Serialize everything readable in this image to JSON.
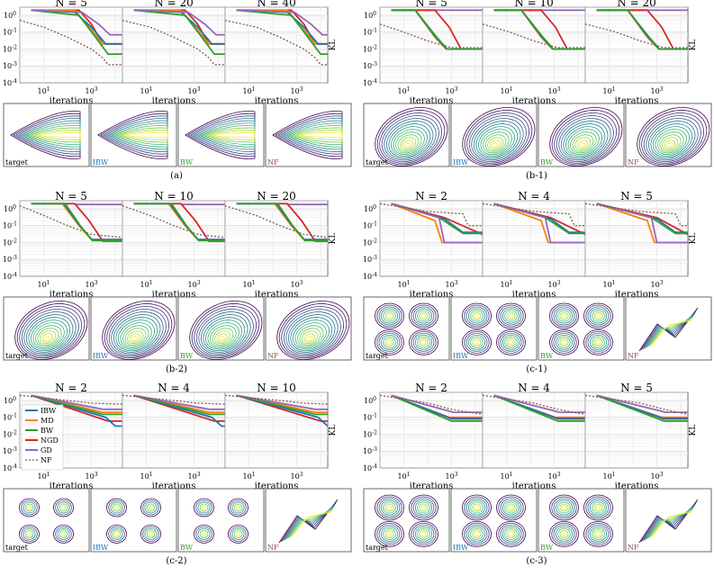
{
  "figure": {
    "xlabel": "iterations",
    "ylabel": "KL",
    "xticks": [
      "10^1",
      "10^3"
    ],
    "yticks": [
      "10^0",
      "10^-1",
      "10^-2",
      "10^-3",
      "10^-4"
    ],
    "ylim": [
      0.0001,
      3
    ],
    "contour_labels": [
      "target",
      "IBW",
      "BW",
      "NF"
    ]
  },
  "legend": [
    {
      "name": "IBW",
      "color": "#1f77b4",
      "style": "solid"
    },
    {
      "name": "MD",
      "color": "#ff7f0e",
      "style": "solid"
    },
    {
      "name": "BW",
      "color": "#2ca02c",
      "style": "solid"
    },
    {
      "name": "NGD",
      "color": "#d62728",
      "style": "solid"
    },
    {
      "name": "GD",
      "color": "#9467bd",
      "style": "solid"
    },
    {
      "name": "NF",
      "color": "#8c564b",
      "style": "dotted"
    }
  ],
  "chart_data": [
    {
      "caption": "(a)",
      "type": "line",
      "titles": [
        "N = 5",
        "N = 20",
        "N = 40"
      ],
      "contour": "banana",
      "series": [
        {
          "name": "NGD",
          "points": [
            [
              3,
              2
            ],
            [
              300,
              2
            ],
            [
              1000,
              0.3
            ],
            [
              3000,
              0.02
            ],
            [
              20000,
              0.02
            ]
          ]
        },
        {
          "name": "MD",
          "points": [
            [
              3,
              2
            ],
            [
              200,
              2
            ],
            [
              800,
              0.2
            ],
            [
              3000,
              0.02
            ],
            [
              20000,
              0.02
            ]
          ]
        },
        {
          "name": "IBW",
          "points": [
            [
              3,
              2
            ],
            [
              200,
              1.5
            ],
            [
              1000,
              0.2
            ],
            [
              4000,
              0.02
            ],
            [
              20000,
              0.02
            ]
          ]
        },
        {
          "name": "BW",
          "points": [
            [
              3,
              2
            ],
            [
              300,
              1
            ],
            [
              1500,
              0.05
            ],
            [
              5000,
              0.005
            ],
            [
              20000,
              0.005
            ]
          ]
        },
        {
          "name": "GD",
          "points": [
            [
              3,
              2
            ],
            [
              400,
              1.5
            ],
            [
              2000,
              0.3
            ],
            [
              6000,
              0.07
            ],
            [
              20000,
              0.07
            ]
          ]
        },
        {
          "name": "NF",
          "points": [
            [
              1,
              0.5
            ],
            [
              10,
              0.2
            ],
            [
              100,
              0.05
            ],
            [
              1000,
              0.01
            ],
            [
              3000,
              0.003
            ],
            [
              5000,
              0.0012
            ],
            [
              20000,
              0.0012
            ]
          ]
        }
      ]
    },
    {
      "caption": "(b-1)",
      "type": "line",
      "titles": [
        "N = 5",
        "N = 10",
        "N = 20"
      ],
      "contour": "blob",
      "series": [
        {
          "name": "GD",
          "points": [
            [
              3,
              2
            ],
            [
              20000,
              2
            ]
          ]
        },
        {
          "name": "NGD",
          "points": [
            [
              3,
              2
            ],
            [
              200,
              2
            ],
            [
              800,
              0.2
            ],
            [
              2500,
              0.01
            ],
            [
              20000,
              0.01
            ]
          ]
        },
        {
          "name": "MD",
          "points": [
            [
              3,
              2
            ],
            [
              30,
              2
            ],
            [
              200,
              0.05
            ],
            [
              600,
              0.01
            ],
            [
              20000,
              0.01
            ]
          ]
        },
        {
          "name": "IBW",
          "points": [
            [
              3,
              2
            ],
            [
              30,
              2
            ],
            [
              220,
              0.05
            ],
            [
              620,
              0.01
            ],
            [
              20000,
              0.01
            ]
          ]
        },
        {
          "name": "BW",
          "points": [
            [
              3,
              2
            ],
            [
              30,
              2
            ],
            [
              240,
              0.05
            ],
            [
              650,
              0.01
            ],
            [
              20000,
              0.01
            ]
          ]
        },
        {
          "name": "NF",
          "points": [
            [
              1,
              0.3
            ],
            [
              10,
              0.1
            ],
            [
              100,
              0.03
            ],
            [
              1000,
              0.012
            ],
            [
              20000,
              0.012
            ]
          ]
        }
      ]
    },
    {
      "caption": "(b-2)",
      "type": "line",
      "titles": [
        "N = 5",
        "N = 10",
        "N = 20"
      ],
      "contour": "blob",
      "series": [
        {
          "name": "GD",
          "points": [
            [
              200,
              1.8
            ],
            [
              20000,
              1.8
            ]
          ]
        },
        {
          "name": "NGD",
          "points": [
            [
              3,
              2
            ],
            [
              200,
              2
            ],
            [
              800,
              0.2
            ],
            [
              3000,
              0.012
            ],
            [
              20000,
              0.012
            ]
          ]
        },
        {
          "name": "MD",
          "points": [
            [
              3,
              2
            ],
            [
              60,
              2
            ],
            [
              300,
              0.1
            ],
            [
              1000,
              0.015
            ],
            [
              20000,
              0.015
            ]
          ]
        },
        {
          "name": "IBW",
          "points": [
            [
              3,
              2
            ],
            [
              70,
              2
            ],
            [
              320,
              0.1
            ],
            [
              1050,
              0.015
            ],
            [
              20000,
              0.015
            ]
          ]
        },
        {
          "name": "BW",
          "points": [
            [
              3,
              2
            ],
            [
              80,
              2
            ],
            [
              340,
              0.1
            ],
            [
              1100,
              0.013
            ],
            [
              20000,
              0.013
            ]
          ]
        },
        {
          "name": "NF",
          "points": [
            [
              1,
              1.5
            ],
            [
              10,
              0.4
            ],
            [
              100,
              0.1
            ],
            [
              1000,
              0.03
            ],
            [
              20000,
              0.02
            ]
          ]
        }
      ]
    },
    {
      "caption": "(c-1)",
      "type": "line",
      "titles": [
        "N = 2",
        "N = 4",
        "N = 5"
      ],
      "contour": "grid4",
      "series": [
        {
          "name": "NGD",
          "points": [
            [
              3,
              2
            ],
            [
              500,
              0.3
            ],
            [
              20000,
              0.03
            ]
          ]
        },
        {
          "name": "MD",
          "points": [
            [
              3,
              2
            ],
            [
              200,
              0.2
            ],
            [
              400,
              0.01
            ],
            [
              20000,
              0.01
            ]
          ]
        },
        {
          "name": "IBW",
          "points": [
            [
              3,
              2
            ],
            [
              500,
              0.25
            ],
            [
              3000,
              0.04
            ],
            [
              20000,
              0.04
            ]
          ]
        },
        {
          "name": "BW",
          "points": [
            [
              3,
              2
            ],
            [
              300,
              0.3
            ],
            [
              3000,
              0.035
            ],
            [
              20000,
              0.035
            ]
          ]
        },
        {
          "name": "GD",
          "points": [
            [
              3,
              2
            ],
            [
              300,
              0.3
            ],
            [
              500,
              0.01
            ],
            [
              20000,
              0.01
            ]
          ]
        },
        {
          "name": "NF",
          "points": [
            [
              1,
              2
            ],
            [
              100,
              0.7
            ],
            [
              3000,
              0.5
            ],
            [
              5000,
              0.1
            ],
            [
              20000,
              0.1
            ]
          ]
        }
      ]
    },
    {
      "caption": "(c-2)",
      "type": "line",
      "titles": [
        "N = 2",
        "N = 4",
        "N = 10"
      ],
      "contour": "grid4small",
      "legend": true,
      "series": [
        {
          "name": "NGD",
          "points": [
            [
              3,
              2
            ],
            [
              5000,
              0.06
            ],
            [
              20000,
              0.06
            ]
          ]
        },
        {
          "name": "MD",
          "points": [
            [
              3,
              2
            ],
            [
              3000,
              0.2
            ],
            [
              20000,
              0.2
            ]
          ]
        },
        {
          "name": "IBW",
          "points": [
            [
              3,
              2
            ],
            [
              4000,
              0.1
            ],
            [
              10000,
              0.03
            ],
            [
              20000,
              0.03
            ]
          ]
        },
        {
          "name": "BW",
          "points": [
            [
              3,
              2
            ],
            [
              3000,
              0.15
            ],
            [
              20000,
              0.15
            ]
          ]
        },
        {
          "name": "GD",
          "points": [
            [
              3,
              2
            ],
            [
              3000,
              0.3
            ],
            [
              20000,
              0.3
            ]
          ]
        },
        {
          "name": "NF",
          "points": [
            [
              1,
              2
            ],
            [
              100,
              1
            ],
            [
              1000,
              0.7
            ],
            [
              20000,
              0.6
            ]
          ]
        }
      ]
    },
    {
      "caption": "(c-3)",
      "type": "line",
      "titles": [
        "N = 2",
        "N = 4",
        "N = 5"
      ],
      "contour": "grid4",
      "series": [
        {
          "name": "NGD",
          "points": [
            [
              3,
              2
            ],
            [
              1000,
              0.08
            ],
            [
              20000,
              0.08
            ]
          ]
        },
        {
          "name": "MD",
          "points": [
            [
              3,
              2
            ],
            [
              800,
              0.1
            ],
            [
              20000,
              0.1
            ]
          ]
        },
        {
          "name": "IBW",
          "points": [
            [
              3,
              2
            ],
            [
              900,
              0.09
            ],
            [
              20000,
              0.09
            ]
          ]
        },
        {
          "name": "BW",
          "points": [
            [
              3,
              2
            ],
            [
              1000,
              0.06
            ],
            [
              20000,
              0.06
            ]
          ]
        },
        {
          "name": "GD",
          "points": [
            [
              3,
              2
            ],
            [
              1200,
              0.2
            ],
            [
              20000,
              0.2
            ]
          ]
        },
        {
          "name": "NF",
          "points": [
            [
              1,
              2
            ],
            [
              100,
              0.7
            ],
            [
              1000,
              0.3
            ],
            [
              20000,
              0.15
            ]
          ]
        }
      ]
    }
  ]
}
